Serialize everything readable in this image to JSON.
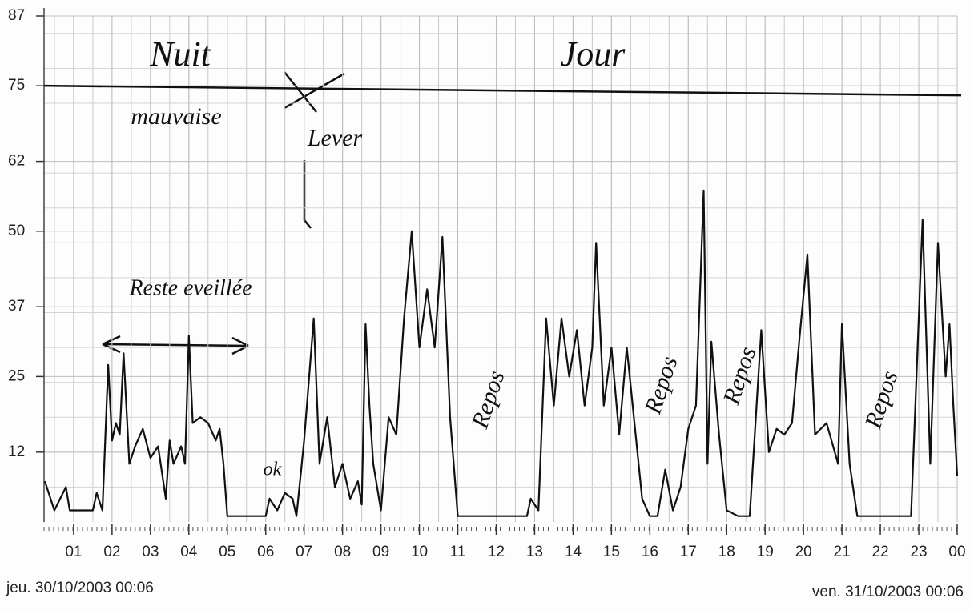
{
  "chart_data": {
    "type": "line",
    "x": [
      0.25,
      0.5,
      0.8,
      0.9,
      1.2,
      1.5,
      1.6,
      1.75,
      1.9,
      2.0,
      2.1,
      2.2,
      2.3,
      2.45,
      2.6,
      2.8,
      3.0,
      3.2,
      3.4,
      3.5,
      3.6,
      3.8,
      3.9,
      4.0,
      4.1,
      4.3,
      4.5,
      4.7,
      4.8,
      4.9,
      5.0,
      5.5,
      6.0,
      6.1,
      6.3,
      6.5,
      6.7,
      6.8,
      7.0,
      7.25,
      7.4,
      7.6,
      7.8,
      8.0,
      8.2,
      8.4,
      8.5,
      8.6,
      8.7,
      8.8,
      9.0,
      9.2,
      9.4,
      9.6,
      9.8,
      10.0,
      10.2,
      10.4,
      10.6,
      10.8,
      11.0,
      12.0,
      12.8,
      12.9,
      13.1,
      13.3,
      13.5,
      13.7,
      13.9,
      14.1,
      14.3,
      14.5,
      14.6,
      14.8,
      15.0,
      15.2,
      15.4,
      15.6,
      15.8,
      16.0,
      16.2,
      16.4,
      16.6,
      16.8,
      17.0,
      17.2,
      17.4,
      17.5,
      17.6,
      17.8,
      18.0,
      18.3,
      18.6,
      18.9,
      19.1,
      19.3,
      19.5,
      19.7,
      19.9,
      20.1,
      20.3,
      20.6,
      20.9,
      21.0,
      21.2,
      21.4,
      22.0,
      22.8,
      23.1,
      23.3,
      23.5,
      23.7,
      23.8,
      23.9,
      24.0
    ],
    "series": [
      {
        "name": null,
        "color": "#111111",
        "values": [
          7,
          2,
          6,
          2,
          2,
          2,
          5,
          2,
          27,
          14,
          17,
          15,
          29,
          10,
          13,
          16,
          11,
          13,
          4,
          14,
          10,
          13,
          10,
          32,
          17,
          18,
          17,
          14,
          16,
          10,
          1,
          1,
          1,
          4,
          2,
          5,
          4,
          1,
          14,
          35,
          10,
          18,
          6,
          10,
          4,
          7,
          3,
          34,
          20,
          10,
          2,
          18,
          15,
          35,
          50,
          30,
          40,
          30,
          49,
          18,
          1,
          1,
          1,
          4,
          2,
          35,
          20,
          35,
          25,
          33,
          20,
          30,
          48,
          20,
          30,
          15,
          30,
          17,
          4,
          1,
          1,
          9,
          2,
          6,
          16,
          20,
          57,
          10,
          31,
          15,
          2,
          1,
          1,
          33,
          12,
          16,
          15,
          17,
          32,
          46,
          15,
          17,
          10,
          34,
          10,
          1,
          1,
          1,
          52,
          10,
          48,
          25,
          34,
          20,
          8
        ]
      }
    ],
    "xlim": [
      0.23,
      24
    ],
    "ylim": [
      0,
      87
    ],
    "yticks": [
      12,
      25,
      37,
      50,
      62,
      75,
      87
    ],
    "xticks": [
      {
        "value": 1,
        "label": "01"
      },
      {
        "value": 2,
        "label": "02"
      },
      {
        "value": 3,
        "label": "03"
      },
      {
        "value": 4,
        "label": "04"
      },
      {
        "value": 5,
        "label": "05"
      },
      {
        "value": 6,
        "label": "06"
      },
      {
        "value": 7,
        "label": "07"
      },
      {
        "value": 8,
        "label": "08"
      },
      {
        "value": 9,
        "label": "09"
      },
      {
        "value": 10,
        "label": "10"
      },
      {
        "value": 11,
        "label": "11"
      },
      {
        "value": 12,
        "label": "12"
      },
      {
        "value": 13,
        "label": "13"
      },
      {
        "value": 14,
        "label": "14"
      },
      {
        "value": 15,
        "label": "15"
      },
      {
        "value": 16,
        "label": "16"
      },
      {
        "value": 17,
        "label": "17"
      },
      {
        "value": 18,
        "label": "18"
      },
      {
        "value": 19,
        "label": "19"
      },
      {
        "value": 20,
        "label": "20"
      },
      {
        "value": 21,
        "label": "21"
      },
      {
        "value": 22,
        "label": "22"
      },
      {
        "value": 23,
        "label": "23"
      },
      {
        "value": 24,
        "label": "00"
      }
    ],
    "grid": true,
    "reference_line": 75,
    "start_label": "jeu. 30/10/2003 00:06",
    "end_label": "ven. 31/10/2003 00:06",
    "annotations": [
      "Nuit",
      "mauvaise",
      "Lever",
      "Reste eveillée",
      "ok",
      "Repos",
      "Jour",
      "Repos",
      "Repos",
      "Repos"
    ]
  }
}
